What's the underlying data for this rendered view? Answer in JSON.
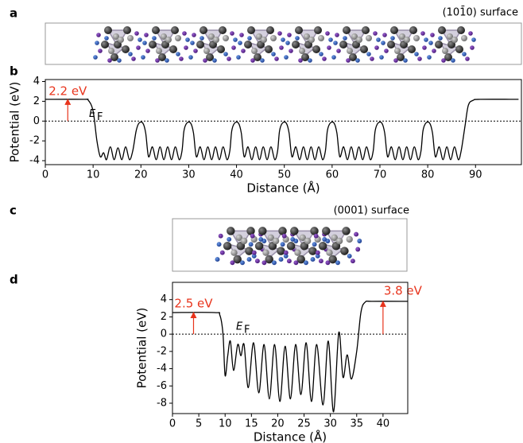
{
  "structures": [
    {
      "panel": "a",
      "label": "(101̄0) surface"
    },
    {
      "panel": "c",
      "label": "(0001) surface"
    }
  ],
  "chart_data": [
    {
      "type": "line",
      "panel": "b",
      "xlabel": "Distance (Å)",
      "ylabel": "Potential (eV)",
      "color": "#000000",
      "xlim": [
        0,
        99.6
      ],
      "ylim": [
        -4.4,
        4.2
      ],
      "xticks": [
        0,
        10,
        20,
        30,
        40,
        50,
        60,
        70,
        80,
        90
      ],
      "yticks": [
        4,
        2,
        0,
        -2,
        -4
      ],
      "fermi_level": 0,
      "fermi_label": "E",
      "fermi_subscript": "F",
      "annotations": [
        {
          "text": "2.2 eV",
          "x": 4.7,
          "y": 2.2,
          "color": "#e8341c"
        }
      ],
      "x": [
        0,
        8,
        9,
        10,
        10.8,
        11.5,
        12.2,
        12.8,
        13.6,
        14.4,
        15.2,
        16,
        16.8,
        17.6,
        18.3,
        19,
        19.6,
        20.4,
        21,
        21.6,
        22.4,
        23.2,
        24,
        24.8,
        25.6,
        26.4,
        27.2,
        28,
        28.6,
        29,
        29.6,
        30.4,
        31,
        31.6,
        32.4,
        33.2,
        34,
        34.8,
        35.6,
        36.4,
        37.2,
        38,
        38.6,
        39,
        39.6,
        40.4,
        41,
        41.6,
        42.4,
        43.2,
        44,
        44.8,
        45.6,
        46.4,
        47.2,
        48,
        48.6,
        49,
        49.6,
        50.4,
        51,
        51.6,
        52.4,
        53.2,
        54,
        54.8,
        55.6,
        56.4,
        57.2,
        58,
        58.6,
        59,
        59.6,
        60.4,
        61,
        61.6,
        62.4,
        63.2,
        64,
        64.8,
        65.6,
        66.4,
        67.2,
        68,
        68.6,
        69,
        69.6,
        70.4,
        71,
        71.6,
        72.4,
        73.2,
        74,
        74.8,
        75.6,
        76.4,
        77.2,
        78,
        78.6,
        79,
        79.6,
        80.4,
        81,
        81.6,
        82.4,
        83.2,
        84,
        84.8,
        85.6,
        86.4,
        87,
        87.8,
        88.5,
        89.5,
        91,
        99
      ],
      "values": [
        2.2,
        2.2,
        2.1,
        1.0,
        -2.0,
        -3.6,
        -3.2,
        -3.9,
        -2.6,
        -3.9,
        -2.7,
        -3.9,
        -2.6,
        -3.9,
        -3.0,
        -1.0,
        -0.2,
        -0.2,
        -1.2,
        -3.6,
        -2.6,
        -3.9,
        -2.6,
        -3.9,
        -2.6,
        -3.9,
        -2.6,
        -3.9,
        -3.0,
        -1.0,
        -0.2,
        -0.2,
        -1.2,
        -3.6,
        -2.6,
        -3.9,
        -2.6,
        -3.9,
        -2.6,
        -3.9,
        -2.6,
        -3.9,
        -3.0,
        -1.0,
        -0.2,
        -0.2,
        -1.2,
        -3.6,
        -2.6,
        -3.9,
        -2.6,
        -3.9,
        -2.6,
        -3.9,
        -2.6,
        -3.9,
        -3.0,
        -1.0,
        -0.2,
        -0.2,
        -1.2,
        -3.6,
        -2.6,
        -3.9,
        -2.6,
        -3.9,
        -2.6,
        -3.9,
        -2.6,
        -3.9,
        -3.0,
        -1.0,
        -0.2,
        -0.2,
        -1.2,
        -3.6,
        -2.6,
        -3.9,
        -2.6,
        -3.9,
        -2.6,
        -3.9,
        -2.6,
        -3.9,
        -3.0,
        -1.0,
        -0.2,
        -0.2,
        -1.2,
        -3.6,
        -2.6,
        -3.9,
        -2.6,
        -3.9,
        -2.6,
        -3.9,
        -2.6,
        -3.9,
        -3.0,
        -1.0,
        -0.2,
        -0.2,
        -1.2,
        -3.6,
        -2.6,
        -3.9,
        -2.6,
        -3.9,
        -2.6,
        -3.9,
        -3.0,
        -0.5,
        1.6,
        2.1,
        2.2,
        2.2
      ]
    },
    {
      "type": "line",
      "panel": "d",
      "xlabel": "Distance (Å)",
      "ylabel": "Potential (eV)",
      "color": "#000000",
      "xlim": [
        0,
        44.7
      ],
      "ylim": [
        -9.2,
        6
      ],
      "xticks": [
        0,
        5,
        10,
        15,
        20,
        25,
        30,
        35,
        40
      ],
      "yticks": [
        4,
        2,
        0,
        -2,
        -4,
        -6,
        -8
      ],
      "fermi_level": 0,
      "fermi_label": "E",
      "fermi_subscript": "F",
      "annotations": [
        {
          "text": "2.5 eV",
          "x": 4,
          "y": 2.5,
          "color": "#e8341c"
        },
        {
          "text": "3.8 eV",
          "x": 40,
          "y": 3.8,
          "color": "#e8341c"
        }
      ],
      "x": [
        0,
        8,
        9,
        9.6,
        10,
        10.5,
        11,
        11.6,
        12.4,
        13,
        13.6,
        14.4,
        15.4,
        16.4,
        17.4,
        18.4,
        19.4,
        20.4,
        21.4,
        22.4,
        23.4,
        24.4,
        25.4,
        26.4,
        27.4,
        28.6,
        29.6,
        30.6,
        31.6,
        32.4,
        33.2,
        34,
        35,
        35.8,
        36.6,
        38,
        44.7
      ],
      "values": [
        2.5,
        2.5,
        2.2,
        0,
        -4.8,
        -2.5,
        -0.8,
        -4.2,
        -1.2,
        -2.5,
        -1.2,
        -6.2,
        -1.0,
        -6.8,
        -1.2,
        -7.5,
        -1.2,
        -7.8,
        -1.4,
        -7.5,
        -1.2,
        -7.0,
        -1.0,
        -7.8,
        -1.2,
        -8.2,
        -0.8,
        -9.0,
        0.2,
        -5.0,
        -2.4,
        -5.2,
        -2.0,
        2.5,
        3.7,
        3.8,
        3.8
      ]
    }
  ]
}
